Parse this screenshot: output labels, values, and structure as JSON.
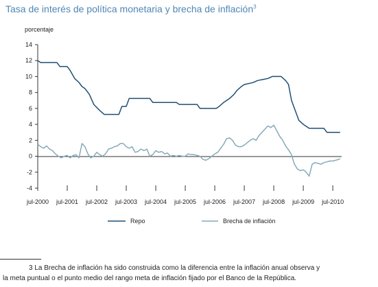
{
  "title": "Tasa de interés de política monetaria y brecha de inflación",
  "title_superscript": "3",
  "footnote": {
    "line1": "3 La Brecha de inflación ha sido construida como la diferencia entre la inflación anual observa y",
    "line2": "la meta puntual o el punto medio del rango meta de inflación fijado por el Banco de la República."
  },
  "chart_data": {
    "type": "line",
    "ylabel": "porcentaje",
    "ylim": [
      -4,
      14
    ],
    "yticks": [
      14,
      12,
      10,
      8,
      6,
      4,
      2,
      0,
      -2,
      -4
    ],
    "xlim": [
      2000.5,
      2010.8
    ],
    "xtick_labels": [
      "jul-2000",
      "jul-2001",
      "jul-2002",
      "jul-2003",
      "jul-2004",
      "jul-2005",
      "jul-2006",
      "jul-2007",
      "jul-2008",
      "jul-2009",
      "jul-2010"
    ],
    "xtick_values": [
      2000.5,
      2001.5,
      2002.5,
      2003.5,
      2004.5,
      2005.5,
      2006.5,
      2007.5,
      2008.5,
      2009.5,
      2010.5
    ],
    "legend_position": "bottom",
    "grid": false,
    "series": [
      {
        "name": "Repo",
        "color": "#1f4e73",
        "points": [
          [
            2000.5,
            12.0
          ],
          [
            2000.6,
            11.75
          ],
          [
            2001.15,
            11.75
          ],
          [
            2001.25,
            11.25
          ],
          [
            2001.5,
            11.25
          ],
          [
            2001.6,
            10.75
          ],
          [
            2001.75,
            9.75
          ],
          [
            2001.9,
            9.25
          ],
          [
            2002.0,
            8.75
          ],
          [
            2002.1,
            8.5
          ],
          [
            2002.25,
            7.75
          ],
          [
            2002.4,
            6.5
          ],
          [
            2002.6,
            5.75
          ],
          [
            2002.75,
            5.25
          ],
          [
            2003.25,
            5.25
          ],
          [
            2003.35,
            6.25
          ],
          [
            2003.5,
            6.25
          ],
          [
            2003.6,
            7.25
          ],
          [
            2004.3,
            7.25
          ],
          [
            2004.4,
            6.75
          ],
          [
            2005.2,
            6.75
          ],
          [
            2005.3,
            6.5
          ],
          [
            2005.9,
            6.5
          ],
          [
            2006.0,
            6.0
          ],
          [
            2006.55,
            6.0
          ],
          [
            2006.65,
            6.25
          ],
          [
            2006.8,
            6.75
          ],
          [
            2007.0,
            7.25
          ],
          [
            2007.15,
            7.75
          ],
          [
            2007.25,
            8.25
          ],
          [
            2007.4,
            8.75
          ],
          [
            2007.5,
            9.0
          ],
          [
            2007.8,
            9.25
          ],
          [
            2007.95,
            9.5
          ],
          [
            2008.3,
            9.75
          ],
          [
            2008.45,
            10.0
          ],
          [
            2008.75,
            10.0
          ],
          [
            2008.9,
            9.5
          ],
          [
            2009.0,
            9.0
          ],
          [
            2009.1,
            7.0
          ],
          [
            2009.2,
            6.0
          ],
          [
            2009.3,
            5.0
          ],
          [
            2009.35,
            4.5
          ],
          [
            2009.5,
            4.0
          ],
          [
            2009.7,
            3.5
          ],
          [
            2010.2,
            3.5
          ],
          [
            2010.3,
            3.0
          ],
          [
            2010.75,
            3.0
          ]
        ]
      },
      {
        "name": "Brecha de inflación",
        "color": "#86aab8",
        "points": [
          [
            2000.5,
            1.5
          ],
          [
            2000.6,
            1.2
          ],
          [
            2000.7,
            1.0
          ],
          [
            2000.8,
            1.3
          ],
          [
            2000.9,
            0.9
          ],
          [
            2001.0,
            0.7
          ],
          [
            2001.1,
            0.3
          ],
          [
            2001.2,
            0.0
          ],
          [
            2001.3,
            -0.2
          ],
          [
            2001.4,
            0.0
          ],
          [
            2001.5,
            0.1
          ],
          [
            2001.6,
            -0.2
          ],
          [
            2001.7,
            0.1
          ],
          [
            2001.8,
            0.2
          ],
          [
            2001.9,
            -0.2
          ],
          [
            2002.0,
            1.6
          ],
          [
            2002.1,
            1.2
          ],
          [
            2002.2,
            0.3
          ],
          [
            2002.3,
            -0.2
          ],
          [
            2002.4,
            0.0
          ],
          [
            2002.5,
            0.5
          ],
          [
            2002.6,
            0.2
          ],
          [
            2002.7,
            0.0
          ],
          [
            2002.8,
            0.3
          ],
          [
            2002.9,
            0.9
          ],
          [
            2003.0,
            1.0
          ],
          [
            2003.1,
            1.2
          ],
          [
            2003.2,
            1.3
          ],
          [
            2003.3,
            1.6
          ],
          [
            2003.4,
            1.6
          ],
          [
            2003.5,
            1.2
          ],
          [
            2003.6,
            1.0
          ],
          [
            2003.7,
            1.2
          ],
          [
            2003.8,
            0.5
          ],
          [
            2003.9,
            0.6
          ],
          [
            2004.0,
            0.9
          ],
          [
            2004.1,
            0.7
          ],
          [
            2004.2,
            0.9
          ],
          [
            2004.3,
            0.0
          ],
          [
            2004.4,
            0.2
          ],
          [
            2004.5,
            0.7
          ],
          [
            2004.6,
            0.5
          ],
          [
            2004.7,
            0.6
          ],
          [
            2004.8,
            0.3
          ],
          [
            2004.9,
            0.4
          ],
          [
            2005.0,
            0.0
          ],
          [
            2005.1,
            0.1
          ],
          [
            2005.2,
            0.0
          ],
          [
            2005.3,
            0.1
          ],
          [
            2005.4,
            0.0
          ],
          [
            2005.5,
            0.0
          ],
          [
            2005.6,
            0.3
          ],
          [
            2005.7,
            0.2
          ],
          [
            2005.8,
            0.2
          ],
          [
            2005.9,
            0.1
          ],
          [
            2006.0,
            0.0
          ],
          [
            2006.1,
            -0.4
          ],
          [
            2006.2,
            -0.5
          ],
          [
            2006.3,
            -0.3
          ],
          [
            2006.4,
            0.0
          ],
          [
            2006.5,
            0.3
          ],
          [
            2006.6,
            0.5
          ],
          [
            2006.7,
            1.0
          ],
          [
            2006.8,
            1.5
          ],
          [
            2006.9,
            2.2
          ],
          [
            2007.0,
            2.3
          ],
          [
            2007.1,
            2.0
          ],
          [
            2007.2,
            1.4
          ],
          [
            2007.3,
            1.2
          ],
          [
            2007.4,
            1.2
          ],
          [
            2007.5,
            1.4
          ],
          [
            2007.6,
            1.7
          ],
          [
            2007.7,
            2.0
          ],
          [
            2007.8,
            2.2
          ],
          [
            2007.9,
            2.0
          ],
          [
            2008.0,
            2.6
          ],
          [
            2008.1,
            3.0
          ],
          [
            2008.2,
            3.4
          ],
          [
            2008.3,
            3.8
          ],
          [
            2008.4,
            3.6
          ],
          [
            2008.5,
            3.9
          ],
          [
            2008.6,
            3.2
          ],
          [
            2008.7,
            2.5
          ],
          [
            2008.8,
            2.0
          ],
          [
            2008.9,
            1.3
          ],
          [
            2009.0,
            0.8
          ],
          [
            2009.1,
            0.2
          ],
          [
            2009.2,
            -1.0
          ],
          [
            2009.3,
            -1.6
          ],
          [
            2009.4,
            -1.8
          ],
          [
            2009.5,
            -1.7
          ],
          [
            2009.6,
            -2.0
          ],
          [
            2009.7,
            -2.5
          ],
          [
            2009.8,
            -1.0
          ],
          [
            2009.9,
            -0.8
          ],
          [
            2010.0,
            -0.9
          ],
          [
            2010.1,
            -1.0
          ],
          [
            2010.2,
            -0.8
          ],
          [
            2010.3,
            -0.7
          ],
          [
            2010.4,
            -0.6
          ],
          [
            2010.5,
            -0.6
          ],
          [
            2010.6,
            -0.5
          ],
          [
            2010.7,
            -0.4
          ],
          [
            2010.75,
            -0.3
          ]
        ]
      }
    ]
  }
}
